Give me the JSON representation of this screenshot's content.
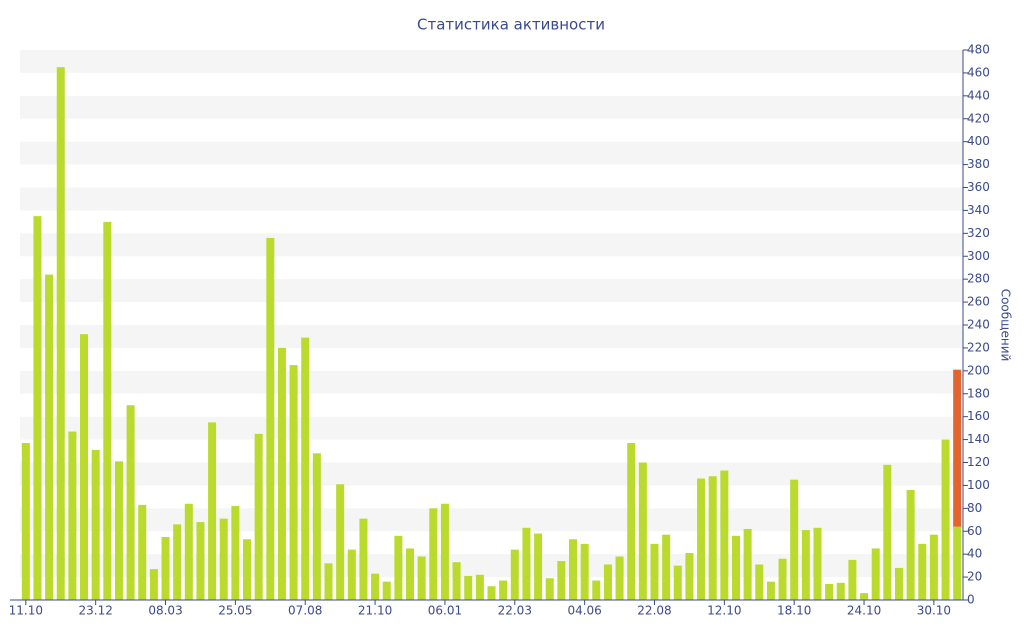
{
  "chart_data": {
    "type": "bar",
    "title": "Статистика активности",
    "y_label": "Сообщений",
    "categories": [
      "11.10",
      null,
      null,
      null,
      null,
      null,
      "23.12",
      null,
      null,
      null,
      null,
      null,
      "08.03",
      null,
      null,
      null,
      null,
      null,
      "25.05",
      null,
      null,
      null,
      null,
      null,
      "07.08",
      null,
      null,
      null,
      null,
      null,
      "21.10",
      null,
      null,
      null,
      null,
      null,
      "06.01",
      null,
      null,
      null,
      null,
      null,
      "22.03",
      null,
      null,
      null,
      null,
      null,
      "04.06",
      null,
      null,
      null,
      null,
      null,
      "22.08",
      null,
      null,
      null,
      null,
      null,
      "12.10",
      null,
      null,
      null,
      null,
      null,
      "18.10",
      null,
      null,
      null,
      null,
      null,
      "24.10",
      null,
      null,
      null,
      null,
      null,
      "30.10",
      null,
      null
    ],
    "series": [
      {
        "color": "#bada2e",
        "values": [
          137,
          335,
          284,
          465,
          147,
          232,
          131,
          330,
          121,
          170,
          83,
          27,
          55,
          66,
          84,
          68,
          155,
          71,
          82,
          53,
          145,
          316,
          220,
          205,
          229,
          128,
          32,
          101,
          44,
          71,
          23,
          16,
          56,
          45,
          38,
          80,
          84,
          33,
          21,
          22,
          12,
          17,
          44,
          63,
          58,
          19,
          34,
          53,
          49,
          17,
          31,
          38,
          137,
          120,
          49,
          57,
          30,
          41,
          106,
          108,
          113,
          56,
          62,
          31,
          16,
          36,
          105,
          61,
          63,
          14,
          15,
          35,
          6,
          45,
          118,
          28,
          96,
          49,
          57,
          140,
          64
        ]
      },
      {
        "color": "#e2652d",
        "values": [
          null,
          null,
          null,
          null,
          null,
          null,
          null,
          null,
          null,
          null,
          null,
          null,
          null,
          null,
          null,
          null,
          null,
          null,
          null,
          null,
          null,
          null,
          null,
          null,
          null,
          null,
          null,
          null,
          null,
          null,
          null,
          null,
          null,
          null,
          null,
          null,
          null,
          null,
          null,
          null,
          null,
          null,
          null,
          null,
          null,
          null,
          null,
          null,
          null,
          null,
          null,
          null,
          null,
          null,
          null,
          null,
          null,
          null,
          null,
          null,
          null,
          null,
          null,
          null,
          null,
          null,
          null,
          null,
          null,
          null,
          null,
          null,
          null,
          null,
          null,
          null,
          null,
          null,
          null,
          null,
          137
        ]
      }
    ],
    "ylim": [
      0,
      480
    ],
    "yticks": [
      0,
      20,
      40,
      60,
      80,
      100,
      120,
      140,
      160,
      180,
      200,
      220,
      240,
      260,
      280,
      300,
      320,
      340,
      360,
      380,
      400,
      420,
      440,
      460,
      480
    ],
    "stacked": true
  }
}
